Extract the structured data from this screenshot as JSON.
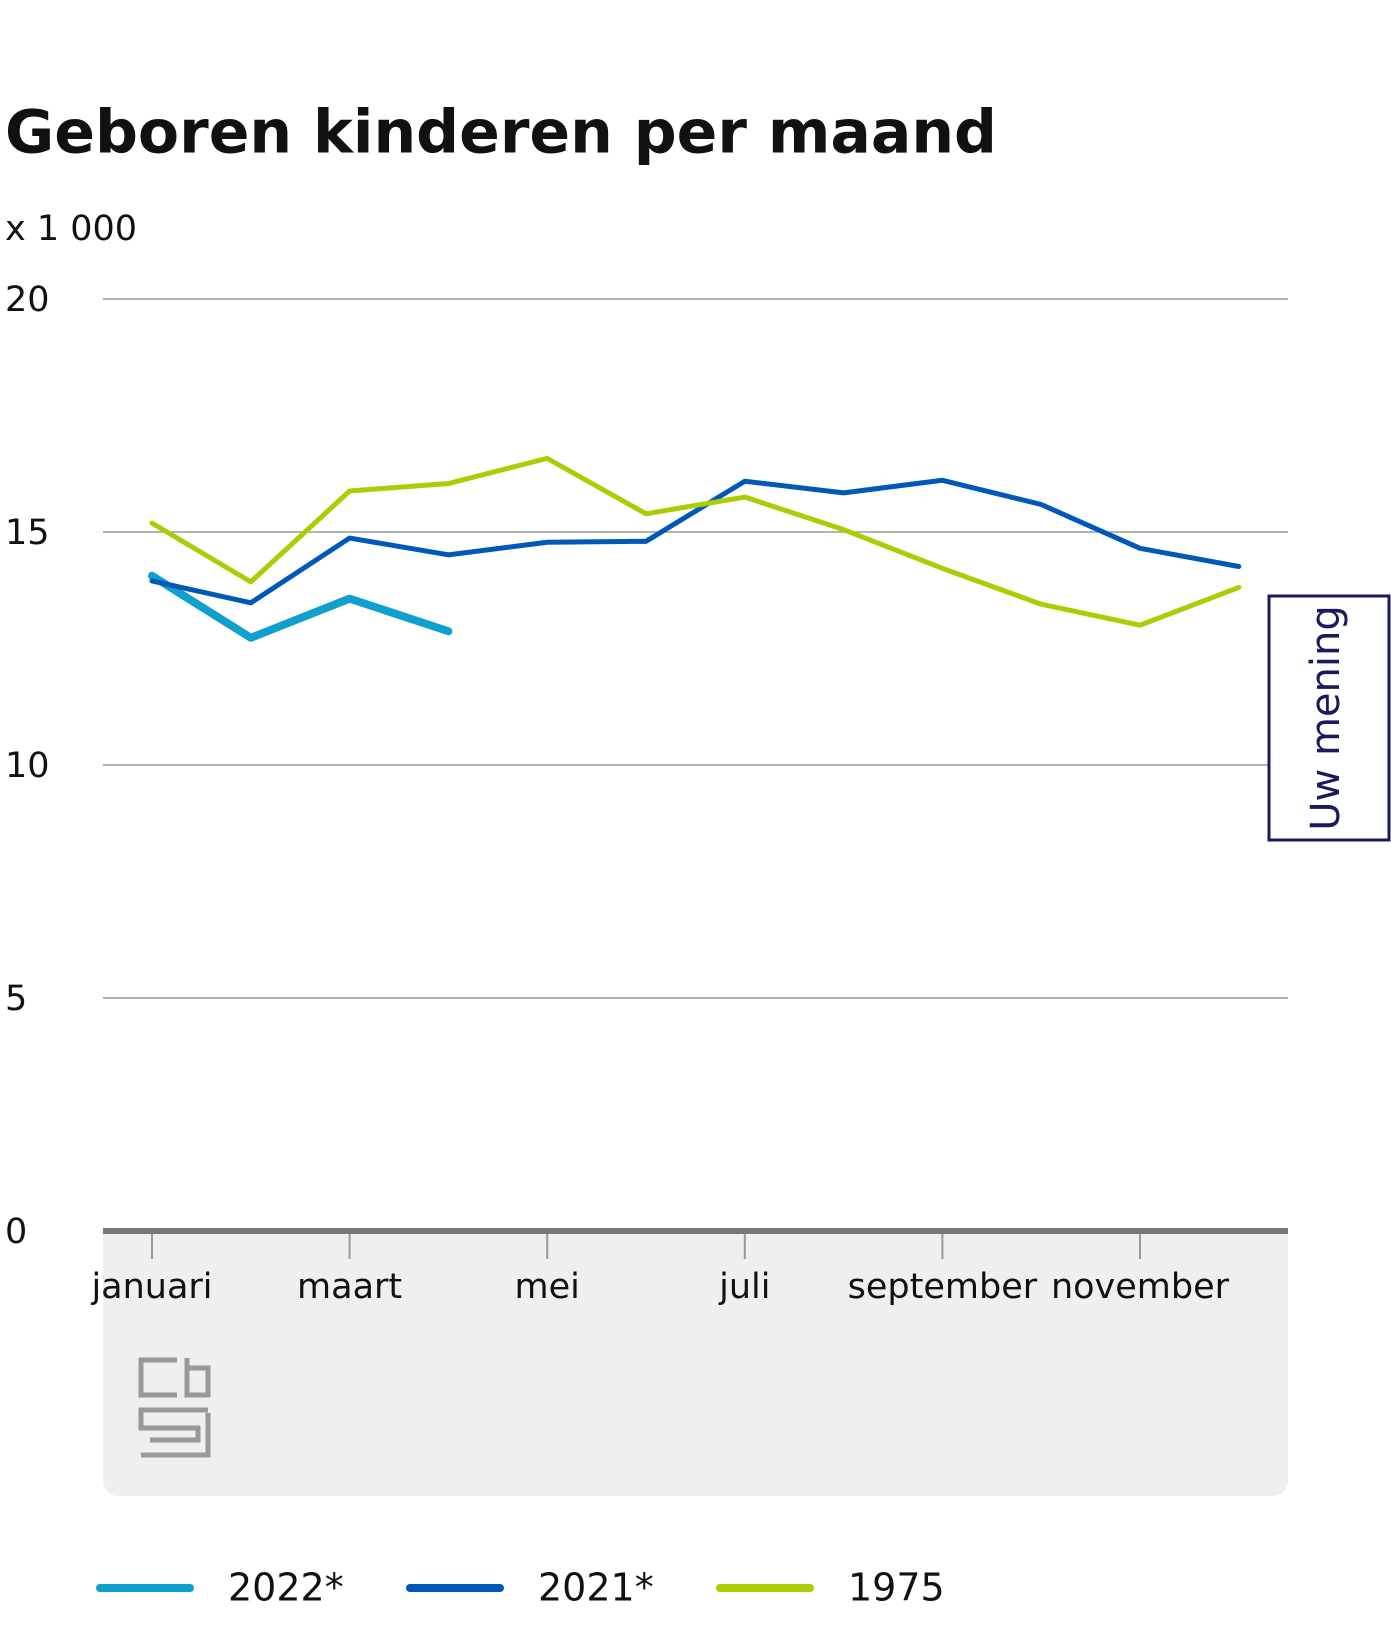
{
  "chart_data": {
    "type": "line",
    "title": "Geboren kinderen per maand",
    "subtitle": "x 1 000",
    "categories": [
      "januari",
      null,
      "maart",
      null,
      "mei",
      null,
      "juli",
      null,
      "september",
      null,
      "november",
      null
    ],
    "series": [
      {
        "name": "2022*",
        "color": "#0fa0ce",
        "values": [
          14.06,
          12.73,
          13.57,
          12.87,
          null,
          null,
          null,
          null,
          null,
          null,
          null,
          null
        ]
      },
      {
        "name": "2021*",
        "color": "#0058b8",
        "values": [
          13.95,
          13.48,
          14.87,
          14.51,
          14.78,
          14.8,
          16.09,
          15.84,
          16.11,
          15.59,
          14.65,
          14.26
        ]
      },
      {
        "name": "1975",
        "color": "#afcb05",
        "values": [
          15.19,
          13.93,
          15.88,
          16.04,
          16.58,
          15.39,
          15.75,
          15.05,
          14.22,
          13.45,
          13.0,
          13.81
        ]
      }
    ],
    "ylim": [
      0,
      20
    ],
    "yticks": [
      0,
      5,
      10,
      15,
      20
    ],
    "grid": true,
    "legend": "bottom",
    "feedback_button": "Uw mening"
  }
}
